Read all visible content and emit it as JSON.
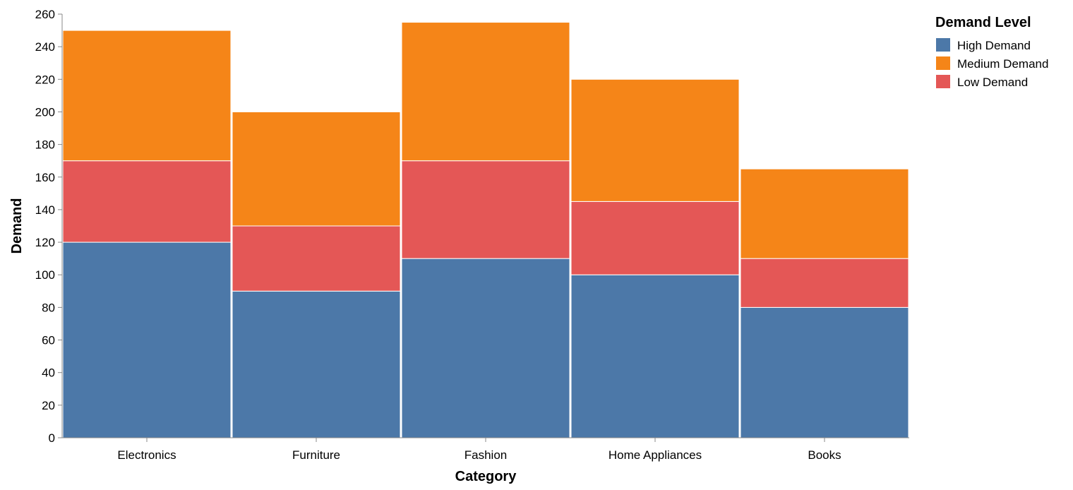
{
  "chart_data": {
    "type": "bar",
    "stacked": true,
    "categories": [
      "Electronics",
      "Furniture",
      "Fashion",
      "Home Appliances",
      "Books"
    ],
    "series": [
      {
        "name": "High Demand",
        "color": "#4c78a8",
        "values": [
          120,
          90,
          110,
          100,
          80
        ]
      },
      {
        "name": "Low Demand",
        "color": "#e45756",
        "values": [
          50,
          40,
          60,
          45,
          30
        ]
      },
      {
        "name": "Medium Demand",
        "color": "#f58518",
        "values": [
          80,
          70,
          85,
          75,
          55
        ]
      }
    ],
    "xlabel": "Category",
    "ylabel": "Demand",
    "ylim": [
      0,
      260
    ],
    "yticks": [
      0,
      20,
      40,
      60,
      80,
      100,
      120,
      140,
      160,
      180,
      200,
      220,
      240,
      260
    ],
    "grid": false,
    "legend": {
      "title": "Demand Level",
      "placement": "top-right",
      "entries": [
        {
          "label": "High Demand",
          "color": "#4c78a8"
        },
        {
          "label": "Medium Demand",
          "color": "#f58518"
        },
        {
          "label": "Low Demand",
          "color": "#e45756"
        }
      ]
    }
  }
}
